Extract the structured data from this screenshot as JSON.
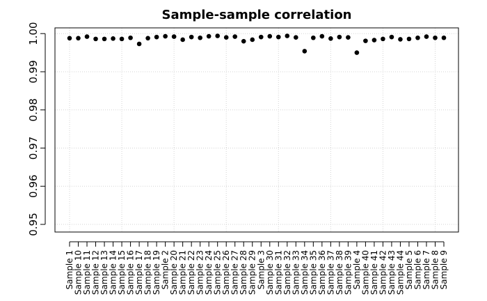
{
  "chart_data": {
    "type": "scatter",
    "title": "Sample-sample correlation",
    "xlabel": "",
    "ylabel": "",
    "ylim": [
      0.948,
      1.0015
    ],
    "yticks": [
      0.95,
      0.96,
      0.97,
      0.98,
      0.99,
      1.0
    ],
    "ytick_labels": [
      "0.95",
      "0.96",
      "0.97",
      "0.98",
      "0.99",
      "1.00"
    ],
    "grid": true,
    "categories": [
      "Sample 1",
      "Sample 10",
      "Sample 11",
      "Sample 12",
      "Sample 13",
      "Sample 14",
      "Sample 15",
      "Sample 16",
      "Sample 17",
      "Sample 18",
      "Sample 19",
      "Sample 2",
      "Sample 20",
      "Sample 21",
      "Sample 22",
      "Sample 23",
      "Sample 24",
      "Sample 25",
      "Sample 26",
      "Sample 27",
      "Sample 28",
      "Sample 29",
      "Sample 3",
      "Sample 30",
      "Sample 31",
      "Sample 32",
      "Sample 33",
      "Sample 34",
      "Sample 35",
      "Sample 36",
      "Sample 37",
      "Sample 38",
      "Sample 39",
      "Sample 4",
      "Sample 40",
      "Sample 41",
      "Sample 42",
      "Sample 43",
      "Sample 44",
      "Sample 5",
      "Sample 6",
      "Sample 7",
      "Sample 8",
      "Sample 9"
    ],
    "values": [
      0.9988,
      0.9988,
      0.9992,
      0.9986,
      0.9986,
      0.9987,
      0.9986,
      0.9989,
      0.9973,
      0.9988,
      0.9991,
      0.9993,
      0.9992,
      0.9984,
      0.9991,
      0.9989,
      0.9993,
      0.9994,
      0.999,
      0.9992,
      0.998,
      0.9984,
      0.9991,
      0.9993,
      0.9991,
      0.9994,
      0.999,
      0.9954,
      0.9989,
      0.9993,
      0.9987,
      0.9991,
      0.999,
      0.995,
      0.9981,
      0.9983,
      0.9986,
      0.9991,
      0.9985,
      0.9986,
      0.9989,
      0.9992,
      0.9989,
      0.9989
    ]
  }
}
